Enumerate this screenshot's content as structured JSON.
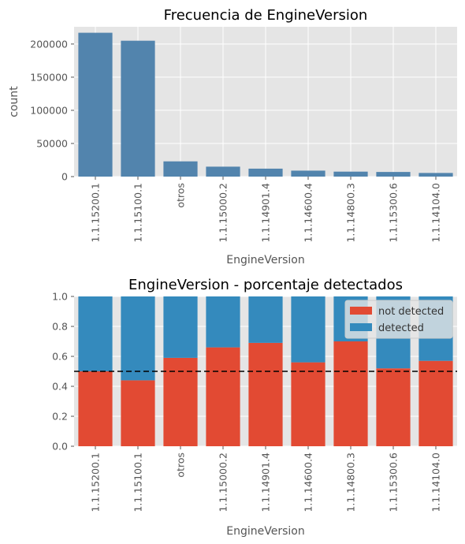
{
  "chart_data": [
    {
      "type": "bar",
      "title": "Frecuencia de EngineVersion",
      "xlabel": "EngineVersion",
      "ylabel": "count",
      "categories": [
        "1.1.15200.1",
        "1.1.15100.1",
        "otros",
        "1.1.15000.2",
        "1.1.14901.4",
        "1.1.14600.4",
        "1.1.14800.3",
        "1.1.15300.6",
        "1.1.14104.0"
      ],
      "values": [
        217000,
        205000,
        23000,
        15000,
        12000,
        9000,
        7500,
        7000,
        5500
      ],
      "ylim": [
        0,
        226000
      ],
      "yticks": [
        0,
        50000,
        100000,
        150000,
        200000
      ],
      "ytick_labels": [
        "0",
        "50000",
        "100000",
        "150000",
        "200000"
      ],
      "bar_color": "#5284ad",
      "grid": true
    },
    {
      "type": "bar",
      "stacked": true,
      "title": "EngineVersion - porcentaje detectados",
      "xlabel": "EngineVersion",
      "ylabel": "",
      "categories": [
        "1.1.15200.1",
        "1.1.15100.1",
        "otros",
        "1.1.15000.2",
        "1.1.14901.4",
        "1.1.14600.4",
        "1.1.14800.3",
        "1.1.15300.6",
        "1.1.14104.0"
      ],
      "series": [
        {
          "name": "not detected",
          "color": "#e24a33",
          "values": [
            0.5,
            0.44,
            0.59,
            0.66,
            0.69,
            0.56,
            0.7,
            0.52,
            0.57
          ]
        },
        {
          "name": "detected",
          "color": "#348abd",
          "values": [
            0.5,
            0.56,
            0.41,
            0.34,
            0.31,
            0.44,
            0.3,
            0.48,
            0.43
          ]
        }
      ],
      "ylim": [
        0,
        1.0
      ],
      "yticks": [
        0,
        0.2,
        0.4,
        0.6,
        0.8,
        1.0
      ],
      "ytick_labels": [
        "0.0",
        "0.2",
        "0.4",
        "0.6",
        "0.8",
        "1.0"
      ],
      "reference_line": 0.5,
      "legend_position": "top-right",
      "grid": true
    }
  ]
}
